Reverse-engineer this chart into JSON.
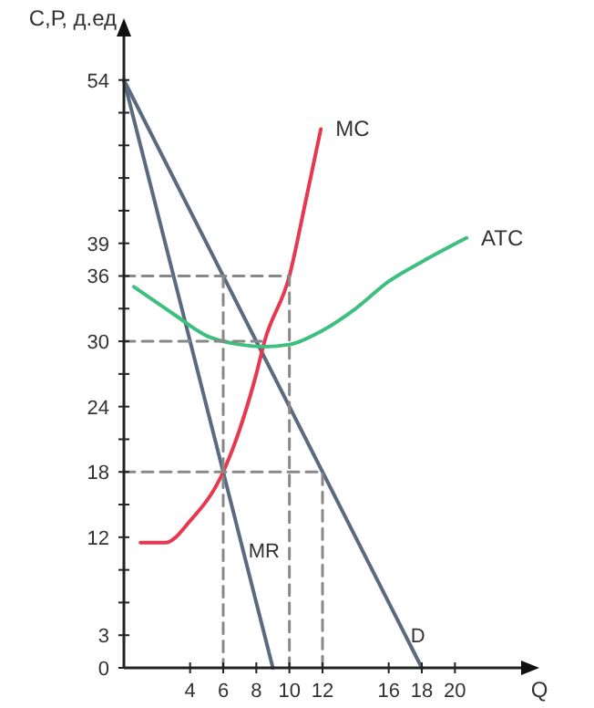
{
  "chart_data": {
    "type": "line",
    "xlabel": "Q",
    "ylabel": "С,Р, д.ед",
    "xlim": [
      0,
      24
    ],
    "ylim": [
      0,
      58
    ],
    "xticks": [
      4,
      6,
      8,
      10,
      12,
      16,
      18,
      20
    ],
    "yticks": [
      0,
      3,
      {
        "value": 6,
        "label": null
      },
      {
        "value": 9,
        "label": null
      },
      12,
      {
        "value": 15,
        "label": null
      },
      18,
      {
        "value": 21,
        "label": null
      },
      24,
      {
        "value": 27,
        "label": null
      },
      30,
      {
        "value": 33,
        "label": null
      },
      36,
      39,
      {
        "value": 42,
        "label": null
      },
      {
        "value": 45,
        "label": null
      },
      {
        "value": 48,
        "label": null
      },
      {
        "value": 51,
        "label": null
      },
      54
    ],
    "grid": false,
    "marker": "none",
    "series": [
      {
        "name": "D",
        "color": "#5a6b80",
        "x": [
          0,
          17,
          18
        ],
        "values": [
          54,
          3,
          0
        ]
      },
      {
        "name": "MR",
        "color": "#5a6b80",
        "x": [
          0,
          7.2,
          9
        ],
        "values": [
          54,
          10.8,
          0
        ]
      },
      {
        "name": "MC",
        "color": "#e8384f",
        "x": [
          1,
          2.5,
          4,
          6,
          8,
          8.5,
          10,
          11,
          11.9
        ],
        "values": [
          11.5,
          11.5,
          13.5,
          18,
          27,
          30,
          36,
          43,
          49.5
        ]
      },
      {
        "name": "ATC",
        "color": "#3cbf7f",
        "x": [
          0.6,
          3,
          5,
          7,
          8.5,
          10,
          12,
          14,
          16,
          18,
          20.7
        ],
        "values": [
          35,
          32.5,
          30.5,
          29.7,
          29.5,
          29.7,
          31,
          33,
          35.5,
          37.3,
          39.5
        ]
      },
      {
        "color": "#888888",
        "line_style": "dashed",
        "x": [
          0,
          10,
          10
        ],
        "values": [
          36,
          36,
          0
        ]
      },
      {
        "color": "#888888",
        "line_style": "dashed",
        "x": [
          0,
          8.3
        ],
        "values": [
          30,
          30
        ]
      },
      {
        "color": "#888888",
        "line_style": "dashed",
        "x": [
          6,
          6
        ],
        "values": [
          36,
          0
        ]
      },
      {
        "color": "#888888",
        "line_style": "dashed",
        "x": [
          0,
          12,
          12
        ],
        "values": [
          18,
          18,
          0
        ]
      }
    ]
  }
}
